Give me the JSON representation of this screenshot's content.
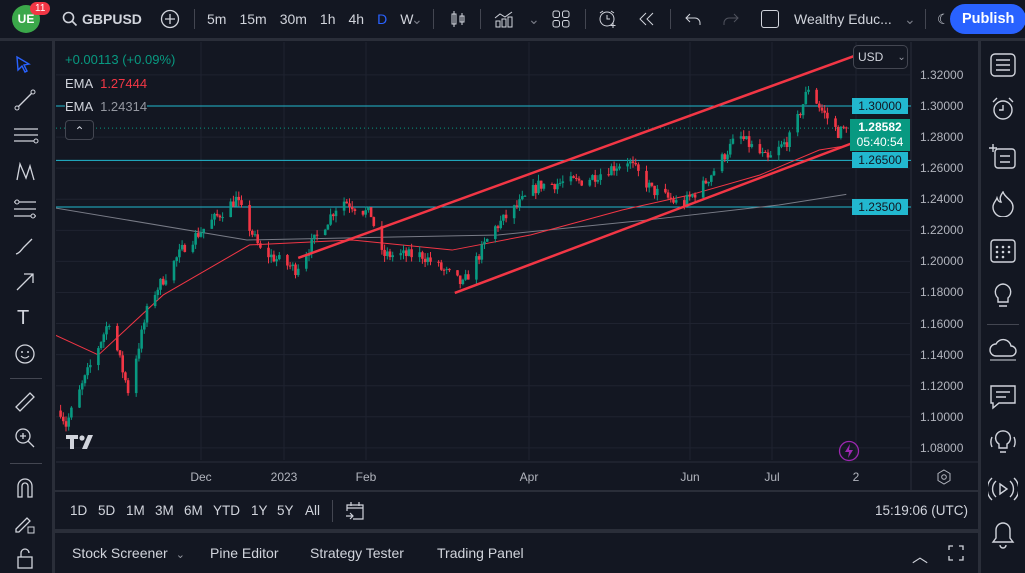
{
  "topbar": {
    "notification_count": "11",
    "symbol": "GBPUSD",
    "intervals": [
      "5m",
      "15m",
      "30m",
      "1h",
      "4h",
      "D",
      "W"
    ],
    "active_interval": "D",
    "layout_name": "Wealthy Educ...",
    "publish_label": "Publish"
  },
  "legend": {
    "change": "+0.00113 (+0.09%)",
    "ema1_label": "EMA",
    "ema1_value": "1.27444",
    "ema2_label": "EMA",
    "ema2_value": "1.24314"
  },
  "price_scale": {
    "currency": "USD",
    "ticks": [
      "1.32000",
      "1.30000",
      "1.28000",
      "1.26000",
      "1.24000",
      "1.22000",
      "1.20000",
      "1.18000",
      "1.16000",
      "1.14000",
      "1.12000",
      "1.10000",
      "1.08000"
    ],
    "levels": [
      "1.30000",
      "1.26500",
      "1.23500"
    ],
    "current_price": "1.28582",
    "countdown": "05:40:54"
  },
  "time_scale": {
    "ticks": [
      "Dec",
      "2023",
      "Feb",
      "Apr",
      "Jun",
      "Jul",
      "2"
    ]
  },
  "range_bar": {
    "ranges": [
      "1D",
      "5D",
      "1M",
      "3M",
      "6M",
      "YTD",
      "1Y",
      "5Y",
      "All"
    ],
    "clock": "15:19:06 (UTC)"
  },
  "bottom_panel": {
    "tabs": [
      "Stock Screener",
      "Pine Editor",
      "Strategy Tester",
      "Trading Panel"
    ]
  },
  "colors": {
    "up": "#089981",
    "down": "#f23645",
    "ema_fast": "#f23645",
    "ema_slow": "#787b86",
    "level": "#22b8cf",
    "trendline": "#f23645",
    "accent": "#2962ff"
  },
  "chart_data": {
    "type": "candlestick",
    "symbol": "GBPUSD",
    "timeframe": "D",
    "ylim": [
      1.07,
      1.335
    ],
    "price_path": [
      [
        "2022-10-10",
        1.104
      ],
      [
        "2022-10-12",
        1.095
      ],
      [
        "2022-10-28",
        1.162
      ],
      [
        "2022-11-04",
        1.117
      ],
      [
        "2022-11-12",
        1.175
      ],
      [
        "2022-11-25",
        1.21
      ],
      [
        "2022-12-14",
        1.24
      ],
      [
        "2022-12-23",
        1.207
      ],
      [
        "2023-01-05",
        1.195
      ],
      [
        "2023-01-22",
        1.24
      ],
      [
        "2023-02-02",
        1.23
      ],
      [
        "2023-02-06",
        1.204
      ],
      [
        "2023-02-21",
        1.204
      ],
      [
        "2023-03-08",
        1.185
      ],
      [
        "2023-03-19",
        1.22
      ],
      [
        "2023-04-05",
        1.249
      ],
      [
        "2023-04-22",
        1.252
      ],
      [
        "2023-05-08",
        1.265
      ],
      [
        "2023-05-17",
        1.246
      ],
      [
        "2023-05-28",
        1.236
      ],
      [
        "2023-06-05",
        1.249
      ],
      [
        "2023-06-18",
        1.281
      ],
      [
        "2023-06-29",
        1.265
      ],
      [
        "2023-07-08",
        1.281
      ],
      [
        "2023-07-14",
        1.312
      ],
      [
        "2023-07-19",
        1.297
      ],
      [
        "2023-07-25",
        1.283
      ],
      [
        "2023-07-28",
        1.2858
      ]
    ],
    "ema_fast_path": [
      [
        "2022-10-08",
        1.1526
      ],
      [
        "2022-10-24",
        1.1398
      ],
      [
        "2022-11-17",
        1.1784
      ],
      [
        "2022-12-19",
        1.2106
      ],
      [
        "2023-01-26",
        1.2138
      ],
      [
        "2023-03-04",
        1.2073
      ],
      [
        "2023-04-02",
        1.217
      ],
      [
        "2023-05-06",
        1.2331
      ],
      [
        "2023-05-31",
        1.2427
      ],
      [
        "2023-06-26",
        1.2556
      ],
      [
        "2023-07-18",
        1.2717
      ],
      [
        "2023-07-28",
        1.2744
      ]
    ],
    "ema_slow_path": [
      [
        "2022-10-08",
        1.2344
      ],
      [
        "2022-12-18",
        1.2138
      ],
      [
        "2023-03-21",
        1.217
      ],
      [
        "2023-05-15",
        1.2266
      ],
      [
        "2023-07-03",
        1.2363
      ],
      [
        "2023-07-28",
        1.2431
      ]
    ],
    "horizontal_levels": [
      1.3,
      1.265,
      1.235
    ],
    "trendlines": [
      [
        [
          "2023-01-06",
          1.2022
        ],
        [
          "2023-08-06",
          1.336
        ]
      ],
      [
        [
          "2023-03-05",
          1.1797
        ],
        [
          "2023-08-20",
          1.2897
        ]
      ]
    ]
  }
}
